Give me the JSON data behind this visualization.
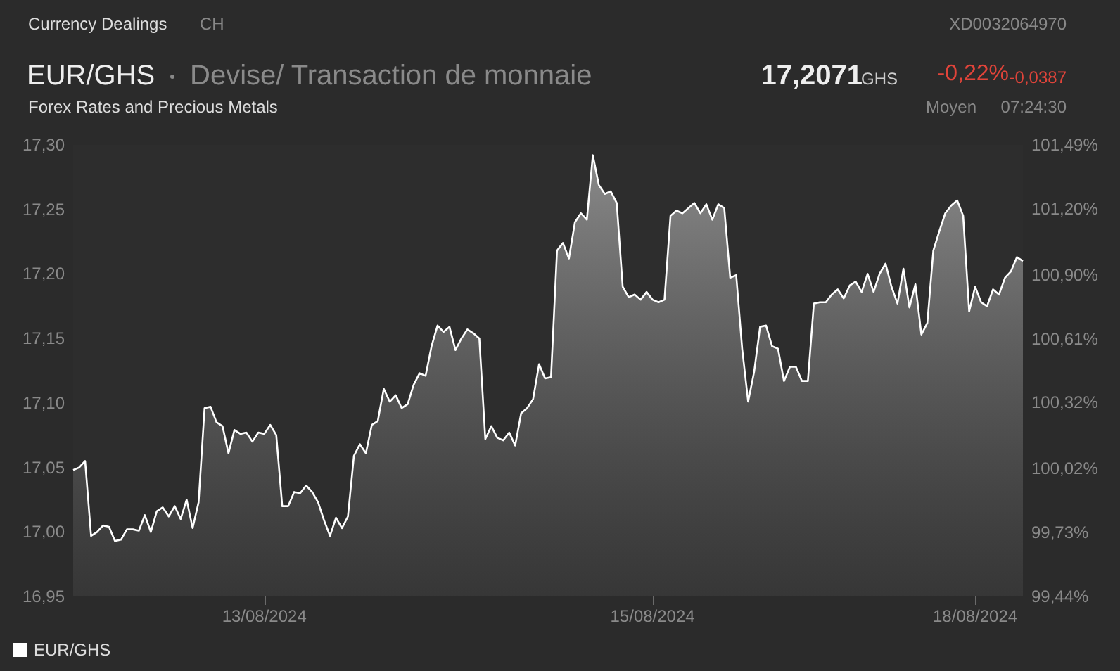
{
  "chart_data": {
    "type": "area",
    "title": "EUR/GHS",
    "subtitle": "Devise/ Transaction de monnaie",
    "annotations": [
      "Currency Dealings",
      "CH",
      "XD0032064970",
      "17,2071",
      "GHS",
      "-0,22%",
      "-0,0387",
      "Forex Rates and Precious Metals",
      "Moyen",
      "07:24:30"
    ],
    "categories": [
      null,
      null,
      null,
      null,
      null,
      null,
      null,
      null,
      null,
      null,
      null,
      null,
      null,
      null,
      null,
      null,
      null,
      null,
      null,
      null,
      null,
      null,
      null,
      null,
      null,
      null,
      null,
      null,
      null,
      null,
      null,
      null,
      "13/08/2024",
      null,
      null,
      null,
      null,
      null,
      null,
      null,
      null,
      null,
      null,
      null,
      null,
      null,
      null,
      null,
      null,
      null,
      null,
      null,
      null,
      null,
      null,
      null,
      null,
      null,
      null,
      null,
      null,
      null,
      null,
      null,
      null,
      null,
      null,
      null,
      null,
      null,
      null,
      null,
      null,
      null,
      null,
      null,
      null,
      null,
      null,
      null,
      null,
      null,
      null,
      null,
      null,
      null,
      null,
      null,
      null,
      null,
      null,
      null,
      null,
      null,
      null,
      null,
      null,
      "15/08/2024",
      null,
      null,
      null,
      null,
      null,
      null,
      null,
      null,
      null,
      null,
      null,
      null,
      null,
      null,
      null,
      null,
      null,
      null,
      null,
      null,
      null,
      null,
      null,
      null,
      null,
      null,
      null,
      null,
      null,
      null,
      null,
      null,
      null,
      null,
      null,
      null,
      null,
      null,
      null,
      null,
      null,
      null,
      null,
      null,
      null,
      null,
      null,
      null,
      null,
      null,
      null,
      null,
      null,
      "18/08/2024",
      null,
      null,
      null,
      null,
      null,
      null,
      null,
      null
    ],
    "series": [
      {
        "name": "EUR/GHS",
        "color": "#ffffff",
        "values": [
          17.048,
          17.05,
          17.055,
          16.997,
          17.0,
          17.005,
          17.004,
          16.993,
          16.994,
          17.002,
          17.002,
          17.001,
          17.013,
          17.0,
          17.016,
          17.019,
          17.012,
          17.02,
          17.01,
          17.025,
          17.003,
          17.023,
          17.096,
          17.097,
          17.085,
          17.082,
          17.061,
          17.079,
          17.076,
          17.077,
          17.07,
          17.077,
          17.076,
          17.083,
          17.075,
          17.02,
          17.02,
          17.031,
          17.03,
          17.036,
          17.031,
          17.023,
          17.009,
          16.997,
          17.011,
          17.003,
          17.012,
          17.059,
          17.068,
          17.061,
          17.083,
          17.086,
          17.111,
          17.101,
          17.106,
          17.096,
          17.099,
          17.114,
          17.123,
          17.121,
          17.144,
          17.16,
          17.155,
          17.159,
          17.141,
          17.15,
          17.157,
          17.154,
          17.15,
          17.072,
          17.082,
          17.073,
          17.071,
          17.077,
          17.067,
          17.092,
          17.096,
          17.103,
          17.13,
          17.119,
          17.12,
          17.218,
          17.224,
          17.212,
          17.24,
          17.247,
          17.242,
          17.292,
          17.269,
          17.262,
          17.264,
          17.255,
          17.19,
          17.182,
          17.184,
          17.18,
          17.186,
          17.18,
          17.178,
          17.18,
          17.245,
          17.249,
          17.247,
          17.251,
          17.255,
          17.247,
          17.254,
          17.242,
          17.254,
          17.251,
          17.197,
          17.199,
          17.142,
          17.101,
          17.124,
          17.159,
          17.16,
          17.144,
          17.142,
          17.117,
          17.128,
          17.128,
          17.117,
          17.117,
          17.177,
          17.178,
          17.178,
          17.184,
          17.188,
          17.181,
          17.191,
          17.194,
          17.186,
          17.2,
          17.186,
          17.2,
          17.208,
          17.19,
          17.177,
          17.204,
          17.174,
          17.192,
          17.153,
          17.162,
          17.218,
          17.233,
          17.247,
          17.253,
          17.257,
          17.245,
          17.171,
          17.19,
          17.178,
          17.175,
          17.188,
          17.184,
          17.197,
          17.202,
          17.213,
          17.21
        ]
      }
    ],
    "ylim": [
      16.95,
      17.3
    ],
    "yticks": [
      {
        "value": 16.95,
        "label": "16,95"
      },
      {
        "value": 17,
        "label": "17,00"
      },
      {
        "value": 17.05,
        "label": "17,05"
      },
      {
        "value": 17.1,
        "label": "17,10"
      },
      {
        "value": 17.15,
        "label": "17,15"
      },
      {
        "value": 17.2,
        "label": "17,20"
      },
      {
        "value": 17.25,
        "label": "17,25"
      },
      {
        "value": 17.3,
        "label": "17,30"
      }
    ],
    "y2lim": [
      99.44,
      101.49
    ],
    "y2ticks": [
      {
        "value": 99.44,
        "label": "99,44%"
      },
      {
        "value": 99.73,
        "label": "99,73%"
      },
      {
        "value": 100.02,
        "label": "100,02%"
      },
      {
        "value": 100.32,
        "label": "100,32%"
      },
      {
        "value": 100.61,
        "label": "100,61%"
      },
      {
        "value": 100.9,
        "label": "100,90%"
      },
      {
        "value": 101.2,
        "label": "101,20%"
      },
      {
        "value": 101.49,
        "label": "101,49%"
      }
    ],
    "legend": "bottom left",
    "grid": false,
    "marker": "none",
    "line_style": "solid"
  }
}
